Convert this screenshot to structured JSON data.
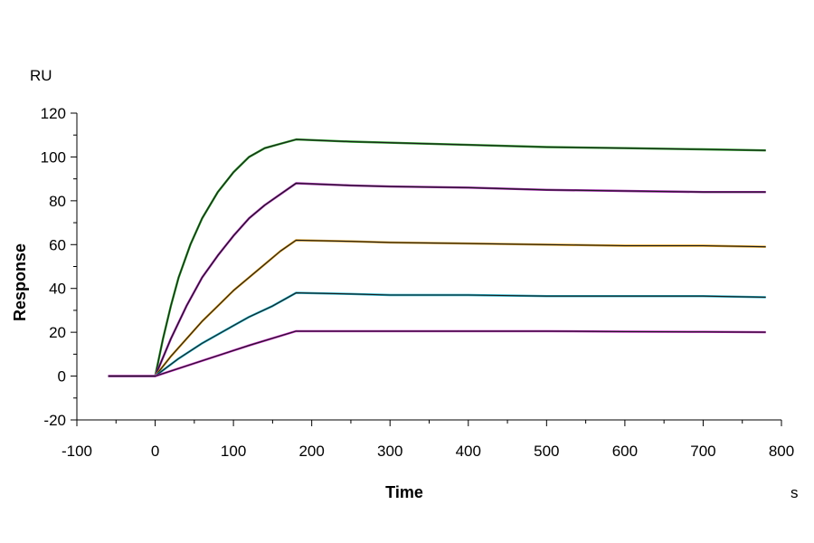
{
  "chart_data": {
    "type": "line",
    "title": "",
    "xlabel": "Time",
    "ylabel": "Response",
    "x_unit": "s",
    "y_unit": "RU",
    "xlim": [
      -100,
      800
    ],
    "ylim": [
      -20,
      120
    ],
    "x_ticks": [
      -100,
      0,
      100,
      200,
      300,
      400,
      500,
      600,
      700,
      800
    ],
    "y_ticks": [
      -20,
      0,
      20,
      40,
      60,
      80,
      100,
      120
    ],
    "x_tick_labels": [
      "-100",
      "0",
      "100",
      "200",
      "300",
      "400",
      "500",
      "600",
      "700",
      "800"
    ],
    "y_tick_labels": [
      "-20",
      "0",
      "20",
      "40",
      "60",
      "80",
      "100",
      "120"
    ],
    "grid": false,
    "legend": "none",
    "fit_color": "#1a1a1a",
    "series": [
      {
        "color": "#2aa02a",
        "x": [
          -60,
          0,
          10,
          20,
          30,
          45,
          60,
          80,
          100,
          120,
          140,
          160,
          180,
          250,
          300,
          400,
          500,
          600,
          700,
          780
        ],
        "y": [
          0,
          0,
          17,
          32,
          45,
          60,
          72,
          84,
          93,
          100,
          104,
          106,
          108,
          107,
          106.5,
          105.5,
          104.5,
          104,
          103.5,
          103
        ]
      },
      {
        "color": "#9c1fa8",
        "x": [
          -60,
          0,
          20,
          40,
          60,
          80,
          100,
          120,
          140,
          160,
          180,
          250,
          300,
          400,
          500,
          600,
          700,
          780
        ],
        "y": [
          0,
          0,
          17,
          32,
          45,
          55,
          64,
          72,
          78,
          83,
          88,
          87,
          86.5,
          86,
          85,
          84.5,
          84,
          84
        ]
      },
      {
        "color": "#e0a020",
        "x": [
          -60,
          0,
          20,
          40,
          60,
          80,
          100,
          120,
          140,
          160,
          180,
          250,
          300,
          400,
          500,
          600,
          700,
          780
        ],
        "y": [
          0,
          0,
          9,
          17,
          25,
          32,
          39,
          45,
          51,
          57,
          62,
          61.5,
          61,
          60.5,
          60,
          59.5,
          59.5,
          59
        ]
      },
      {
        "color": "#20b0c8",
        "x": [
          -60,
          0,
          30,
          60,
          90,
          120,
          150,
          180,
          250,
          300,
          400,
          500,
          600,
          700,
          780
        ],
        "y": [
          0,
          0,
          8,
          15,
          21,
          27,
          32,
          38,
          37.5,
          37,
          37,
          36.5,
          36.5,
          36.5,
          36
        ]
      },
      {
        "color": "#c020c0",
        "x": [
          -60,
          0,
          60,
          120,
          180,
          250,
          300,
          400,
          500,
          600,
          700,
          780
        ],
        "y": [
          0,
          0,
          7,
          14,
          20.5,
          20.5,
          20.5,
          20.5,
          20.5,
          20.3,
          20.2,
          20
        ]
      }
    ]
  }
}
